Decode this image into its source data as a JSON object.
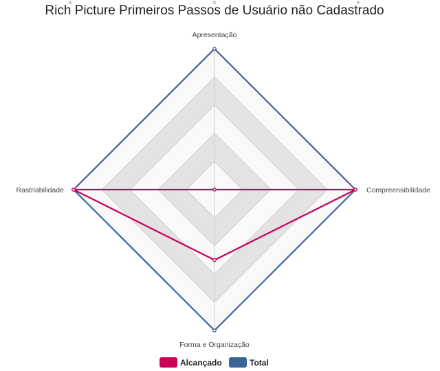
{
  "chart_data": {
    "type": "radar",
    "title": "Rich Picture Primeiros Passos de Usuário não Cadastrado",
    "axes": [
      "Apresentação",
      "Compreensibilidade",
      "Forma e Organização",
      "Rastriabilidade"
    ],
    "rmax": 5,
    "ring_count": 5,
    "series": [
      {
        "name": "Alcançado",
        "values": [
          0,
          5,
          2.5,
          5
        ],
        "color": "#cc0055"
      },
      {
        "name": "Total",
        "values": [
          5,
          5,
          5,
          5
        ],
        "color": "#3a6496",
        "color_top": "#4a5a94"
      }
    ],
    "legend_position": "bottom",
    "ring_fill_light": "#f9f9f9",
    "ring_fill_dark": "#e3e3e3",
    "grid_color": "#cfcfcf"
  },
  "marker_glyph": "×"
}
